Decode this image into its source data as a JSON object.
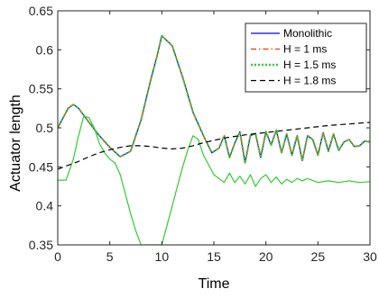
{
  "chart_data": {
    "type": "line",
    "title": "",
    "xlabel": "Time",
    "ylabel": "Actuator length",
    "xlim": [
      0,
      30
    ],
    "ylim": [
      0.35,
      0.65
    ],
    "xticks": [
      0,
      5,
      10,
      15,
      20,
      25,
      30
    ],
    "yticks": [
      0.35,
      0.4,
      0.45,
      0.5,
      0.55,
      0.6,
      0.65
    ],
    "ytick_labels": [
      "0.35",
      "0.4",
      "0.45",
      "0.5",
      "0.55",
      "0.6",
      "0.65"
    ],
    "grid": false,
    "legend_position": "top-right",
    "legend": [
      {
        "label": "Monolithic",
        "color": "#0000ff",
        "style": "solid"
      },
      {
        "label": "H = 1 ms",
        "color": "#ff3300",
        "style": "dashdot"
      },
      {
        "label": "H = 1.5 ms",
        "color": "#33cc33",
        "style": "dotted"
      },
      {
        "label": "H = 1.8 ms",
        "color": "#000000",
        "style": "dashed"
      }
    ],
    "series": [
      {
        "name": "Monolithic",
        "color": "#0000ff",
        "style": "solid",
        "x": [
          0,
          1,
          1.5,
          2,
          3,
          4,
          5,
          6,
          7,
          8,
          9,
          9.5,
          10,
          11,
          12,
          13,
          14,
          14.8,
          15.5,
          16,
          16.5,
          17,
          17.5,
          18,
          18.5,
          19,
          19.5,
          20,
          20.5,
          21,
          21.5,
          22,
          22.5,
          23,
          23.5,
          24,
          24.5,
          25,
          25.5,
          26,
          26.5,
          27,
          27.5,
          28,
          28.5,
          29,
          29.5,
          30
        ],
        "y": [
          0.5,
          0.525,
          0.53,
          0.525,
          0.507,
          0.49,
          0.475,
          0.463,
          0.47,
          0.51,
          0.565,
          0.59,
          0.618,
          0.605,
          0.565,
          0.52,
          0.49,
          0.468,
          0.474,
          0.49,
          0.462,
          0.48,
          0.495,
          0.455,
          0.49,
          0.493,
          0.462,
          0.495,
          0.478,
          0.497,
          0.468,
          0.492,
          0.465,
          0.49,
          0.458,
          0.49,
          0.485,
          0.465,
          0.494,
          0.47,
          0.492,
          0.471,
          0.482,
          0.485,
          0.476,
          0.477,
          0.483,
          0.482
        ]
      },
      {
        "name": "H = 1 ms",
        "color": "#ff3300",
        "style": "dashdot",
        "x": [
          0,
          1,
          1.5,
          2,
          3,
          4,
          5,
          6,
          7,
          8,
          9,
          9.5,
          10,
          11,
          12,
          13,
          14,
          14.8,
          15.5,
          16,
          16.5,
          17,
          17.5,
          18,
          18.5,
          19,
          19.5,
          20,
          20.5,
          21,
          21.5,
          22,
          22.5,
          23,
          23.5,
          24,
          24.5,
          25,
          25.5,
          26,
          26.5,
          27,
          27.5,
          28,
          28.5,
          29,
          29.5,
          30
        ],
        "y": [
          0.5,
          0.525,
          0.53,
          0.525,
          0.507,
          0.49,
          0.475,
          0.463,
          0.47,
          0.51,
          0.565,
          0.59,
          0.618,
          0.605,
          0.565,
          0.52,
          0.49,
          0.468,
          0.474,
          0.49,
          0.462,
          0.48,
          0.495,
          0.455,
          0.49,
          0.493,
          0.462,
          0.495,
          0.478,
          0.497,
          0.468,
          0.492,
          0.465,
          0.49,
          0.458,
          0.49,
          0.485,
          0.465,
          0.494,
          0.47,
          0.492,
          0.471,
          0.482,
          0.485,
          0.476,
          0.477,
          0.483,
          0.482
        ]
      },
      {
        "name": "H = 1.5 ms",
        "color": "#33cc33",
        "style": "dotted",
        "x": [
          0,
          1,
          1.5,
          2,
          3,
          4,
          5,
          6,
          7,
          8,
          9,
          9.5,
          10,
          11,
          12,
          13,
          14,
          14.8,
          15.5,
          16,
          16.5,
          17,
          17.5,
          18,
          18.5,
          19,
          19.5,
          20,
          20.5,
          21,
          21.5,
          22,
          22.5,
          23,
          23.5,
          24,
          24.5,
          25,
          25.5,
          26,
          26.5,
          27,
          27.5,
          28,
          28.5,
          29,
          29.5,
          30
        ],
        "y": [
          0.5,
          0.525,
          0.53,
          0.525,
          0.507,
          0.49,
          0.475,
          0.463,
          0.47,
          0.51,
          0.565,
          0.59,
          0.618,
          0.605,
          0.565,
          0.52,
          0.49,
          0.468,
          0.474,
          0.49,
          0.462,
          0.48,
          0.495,
          0.455,
          0.49,
          0.493,
          0.462,
          0.495,
          0.478,
          0.497,
          0.468,
          0.492,
          0.465,
          0.49,
          0.458,
          0.49,
          0.485,
          0.465,
          0.494,
          0.47,
          0.492,
          0.471,
          0.482,
          0.485,
          0.476,
          0.477,
          0.483,
          0.482
        ]
      },
      {
        "name": "H = 1.5 ms",
        "color": "#33cc33",
        "style": "solid",
        "x": [
          0,
          0.8,
          1.5,
          2,
          2.5,
          3,
          3.5,
          4,
          4.5,
          5,
          5.5,
          6,
          6.5,
          7,
          7.5,
          8,
          9,
          9.5,
          10,
          10.5,
          11,
          11.5,
          12,
          12.5,
          13,
          13.5,
          14,
          15,
          16,
          16.5,
          17,
          17.5,
          18,
          18.5,
          19,
          19.5,
          20,
          20.5,
          21,
          21.5,
          22,
          22.5,
          23,
          23.5,
          24,
          25,
          26,
          27,
          28,
          29,
          30
        ],
        "y": [
          0.433,
          0.433,
          0.46,
          0.49,
          0.515,
          0.513,
          0.5,
          0.48,
          0.468,
          0.46,
          0.455,
          0.44,
          0.415,
          0.39,
          0.368,
          0.35,
          0.35,
          0.35,
          0.35,
          0.375,
          0.4,
          0.425,
          0.45,
          0.472,
          0.49,
          0.485,
          0.465,
          0.44,
          0.43,
          0.442,
          0.43,
          0.438,
          0.428,
          0.44,
          0.425,
          0.435,
          0.44,
          0.43,
          0.437,
          0.428,
          0.434,
          0.43,
          0.435,
          0.432,
          0.435,
          0.43,
          0.432,
          0.43,
          0.432,
          0.43,
          0.431
        ]
      },
      {
        "name": "H = 1.8 ms",
        "color": "#000000",
        "style": "dashed",
        "x": [
          0,
          1,
          2,
          3,
          4,
          5,
          6,
          7,
          8,
          9,
          10,
          11,
          12,
          13,
          14,
          15,
          16,
          18,
          20,
          22,
          24,
          26,
          28,
          30
        ],
        "y": [
          0.447,
          0.452,
          0.457,
          0.463,
          0.468,
          0.472,
          0.475,
          0.477,
          0.477,
          0.476,
          0.474,
          0.473,
          0.474,
          0.477,
          0.481,
          0.484,
          0.487,
          0.491,
          0.494,
          0.497,
          0.5,
          0.503,
          0.505,
          0.507
        ]
      }
    ]
  }
}
